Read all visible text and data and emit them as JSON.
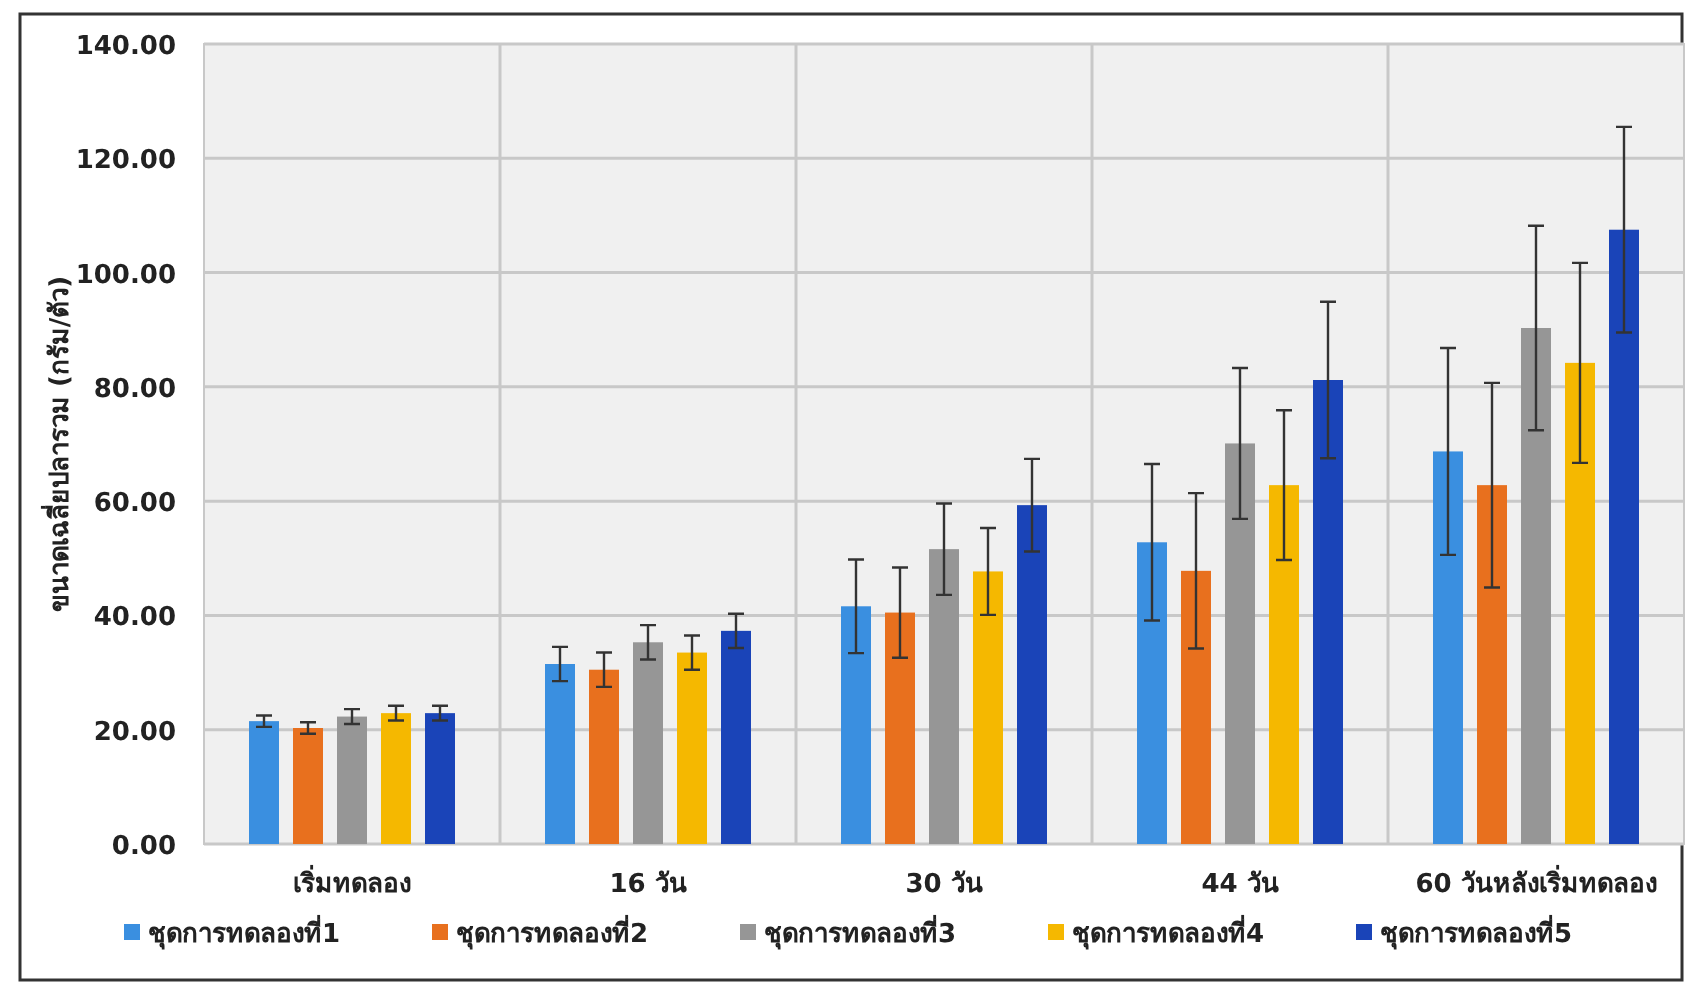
{
  "chart_data": {
    "type": "bar",
    "ylabel": "ขนาดเฉลี่ยปลารวม (กรัม/ตัว)",
    "categories": [
      "เริ่มทดลอง",
      "16 วัน",
      "30 วัน",
      "44 วัน",
      "60 วันหลังเริ่มทดลอง"
    ],
    "series": [
      {
        "name": "ชุดการทดลองที่1",
        "color": "#3a8fe0",
        "values": [
          21.5,
          31.5,
          41.6,
          52.8,
          68.7
        ],
        "errors": [
          1.0,
          3.0,
          8.2,
          13.7,
          18.1
        ]
      },
      {
        "name": "ชุดการทดลองที่2",
        "color": "#e8701e",
        "values": [
          20.3,
          30.5,
          40.5,
          47.8,
          62.8
        ],
        "errors": [
          1.0,
          3.0,
          7.9,
          13.6,
          17.9
        ]
      },
      {
        "name": "ชุดการทดลองที่3",
        "color": "#969696",
        "values": [
          22.3,
          35.3,
          51.6,
          70.1,
          90.3
        ],
        "errors": [
          1.3,
          3.0,
          8.0,
          13.2,
          17.9
        ]
      },
      {
        "name": "ชุดการทดลองที่4",
        "color": "#f5b800",
        "values": [
          22.9,
          33.5,
          47.7,
          62.8,
          84.2
        ],
        "errors": [
          1.3,
          3.0,
          7.6,
          13.1,
          17.5
        ]
      },
      {
        "name": "ชุดการทดลองที่5",
        "color": "#1a44b8",
        "values": [
          22.9,
          37.3,
          59.3,
          81.2,
          107.5
        ],
        "errors": [
          1.3,
          3.0,
          8.1,
          13.7,
          18.0
        ]
      }
    ],
    "ylim": [
      0,
      140
    ],
    "yticks": [
      {
        "value": 0,
        "label": "0.00"
      },
      {
        "value": 20,
        "label": "20.00"
      },
      {
        "value": 40,
        "label": "40.00"
      },
      {
        "value": 60,
        "label": "60.00"
      },
      {
        "value": 80,
        "label": "80.00"
      },
      {
        "value": 100,
        "label": "100.00"
      },
      {
        "value": 120,
        "label": "120.00"
      },
      {
        "value": 140,
        "label": "140.00"
      }
    ],
    "grid": true,
    "legend": "bottom"
  }
}
